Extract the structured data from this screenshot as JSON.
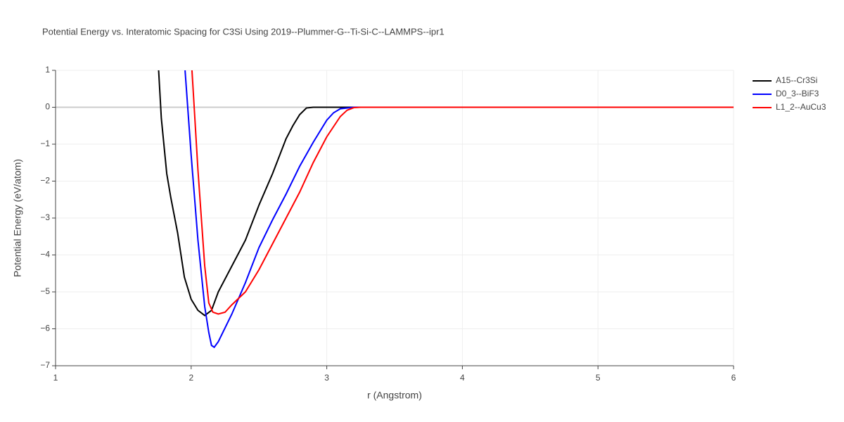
{
  "chart_data": {
    "type": "line",
    "title": "Potential Energy vs. Interatomic Spacing for C3Si Using 2019--Plummer-G--Ti-Si-C--LAMMPS--ipr1",
    "x_label": "r (Angstrom)",
    "y_label": "Potential Energy (eV/atom)",
    "xlim": [
      1,
      6
    ],
    "ylim": [
      -7,
      1
    ],
    "xticks": [
      1,
      2,
      3,
      4,
      5,
      6
    ],
    "yticks": [
      1,
      0,
      {
        "value": -1,
        "label": "−1"
      },
      {
        "value": -2,
        "label": "−2"
      },
      {
        "value": -3,
        "label": "−3"
      },
      {
        "value": -4,
        "label": "−4"
      },
      {
        "value": -5,
        "label": "−5"
      },
      {
        "value": -6,
        "label": "−6"
      },
      {
        "value": -7,
        "label": "−7"
      }
    ],
    "grid": true,
    "legend": "right",
    "series": [
      {
        "name": "A15--Cr3Si",
        "color": "#000000",
        "x": [
          1.76,
          1.78,
          1.82,
          1.85,
          1.9,
          1.95,
          2.0,
          2.05,
          2.1,
          2.15,
          2.2,
          2.3,
          2.4,
          2.5,
          2.6,
          2.7,
          2.75,
          2.8,
          2.85,
          2.9,
          3.0,
          6.0
        ],
        "values": [
          1.0,
          -0.3,
          -1.8,
          -2.45,
          -3.4,
          -4.6,
          -5.2,
          -5.5,
          -5.64,
          -5.5,
          -5.0,
          -4.3,
          -3.6,
          -2.65,
          -1.8,
          -0.85,
          -0.5,
          -0.2,
          -0.02,
          0,
          0,
          0
        ]
      },
      {
        "name": "D0_3--BiF3",
        "color": "#0000ff",
        "x": [
          1.955,
          2.0,
          2.05,
          2.1,
          2.13,
          2.15,
          2.17,
          2.2,
          2.3,
          2.4,
          2.5,
          2.6,
          2.7,
          2.8,
          2.9,
          3.0,
          3.05,
          3.1,
          3.2,
          6.0
        ],
        "values": [
          1.0,
          -1.3,
          -3.6,
          -5.4,
          -6.1,
          -6.45,
          -6.5,
          -6.35,
          -5.6,
          -4.75,
          -3.8,
          -3.05,
          -2.35,
          -1.6,
          -0.95,
          -0.35,
          -0.15,
          -0.04,
          0,
          0
        ]
      },
      {
        "name": "L1_2--AuCu3",
        "color": "#ff0000",
        "x": [
          2.006,
          2.05,
          2.1,
          2.13,
          2.16,
          2.2,
          2.25,
          2.3,
          2.4,
          2.5,
          2.6,
          2.7,
          2.8,
          2.9,
          3.0,
          3.1,
          3.15,
          3.2,
          3.25,
          6.0
        ],
        "values": [
          1.0,
          -1.7,
          -4.3,
          -5.3,
          -5.55,
          -5.6,
          -5.55,
          -5.35,
          -5.0,
          -4.4,
          -3.7,
          -3.0,
          -2.3,
          -1.5,
          -0.8,
          -0.25,
          -0.08,
          -0.01,
          0,
          0
        ]
      }
    ]
  }
}
